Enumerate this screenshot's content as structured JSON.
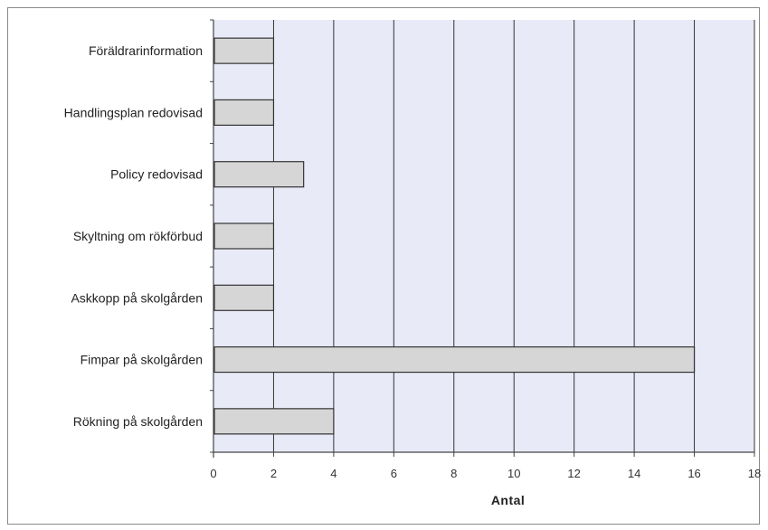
{
  "chart_data": {
    "type": "bar",
    "orientation": "horizontal",
    "categories": [
      "Föräldrarinformation",
      "Handlingsplan redovisad",
      "Policy redovisad",
      "Skyltning om rökförbud",
      "Askkopp på skolgården",
      "Fimpar på skolgården",
      "Rökning på skolgården"
    ],
    "values": [
      2,
      2,
      3,
      2,
      2,
      16,
      4
    ],
    "xlabel": "Antal",
    "ylabel": "",
    "xlim": [
      0,
      18
    ],
    "xticks": [
      "0",
      "2",
      "4",
      "6",
      "8",
      "10",
      "12",
      "14",
      "16",
      "18"
    ],
    "grid": true,
    "legend": "none",
    "colors": {
      "plot_background": "#e8eaf8",
      "bar_fill": "#d6d6d6",
      "bar_stroke": "#333333",
      "gridline": "#333333"
    }
  }
}
